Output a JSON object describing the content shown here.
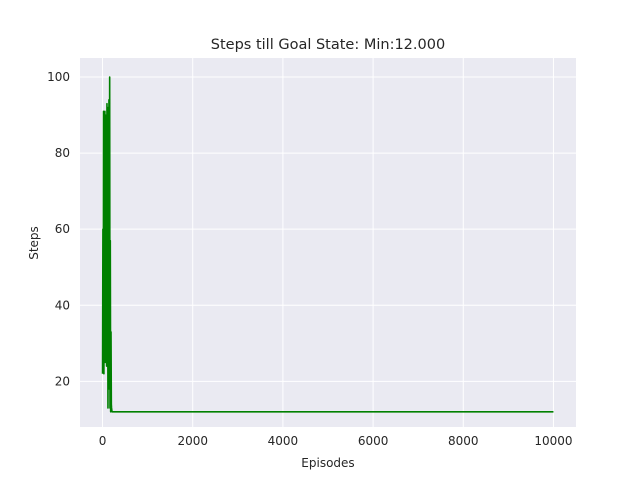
{
  "chart_data": {
    "type": "line",
    "title": "Steps till Goal State: Min:12.000",
    "xlabel": "Episodes",
    "ylabel": "Steps",
    "xlim": [
      -500,
      10500
    ],
    "ylim": [
      8,
      105
    ],
    "xticks": [
      0,
      2000,
      4000,
      6000,
      8000,
      10000
    ],
    "yticks": [
      20,
      40,
      60,
      80,
      100
    ],
    "grid": true,
    "style": "seaborn-darkgrid",
    "colors": {
      "background": "#eaeaf2",
      "grid": "#ffffff",
      "series": "#008000"
    },
    "series": [
      {
        "color": "#008000",
        "x": [
          0,
          8,
          15,
          22,
          30,
          38,
          45,
          52,
          60,
          68,
          75,
          82,
          90,
          98,
          105,
          112,
          120,
          128,
          135,
          142,
          150,
          158,
          165,
          172,
          180,
          188,
          195,
          200,
          210,
          230,
          260,
          300,
          500,
          1000,
          2000,
          4000,
          6000,
          8000,
          10000
        ],
        "y": [
          22,
          60,
          28,
          91,
          22,
          55,
          30,
          91,
          25,
          90,
          40,
          68,
          24,
          93,
          35,
          62,
          13,
          92,
          25,
          94,
          18,
          100,
          13,
          57,
          12,
          33,
          14,
          13,
          12,
          12,
          12,
          12,
          12,
          12,
          12,
          12,
          12,
          12,
          12
        ]
      }
    ]
  }
}
